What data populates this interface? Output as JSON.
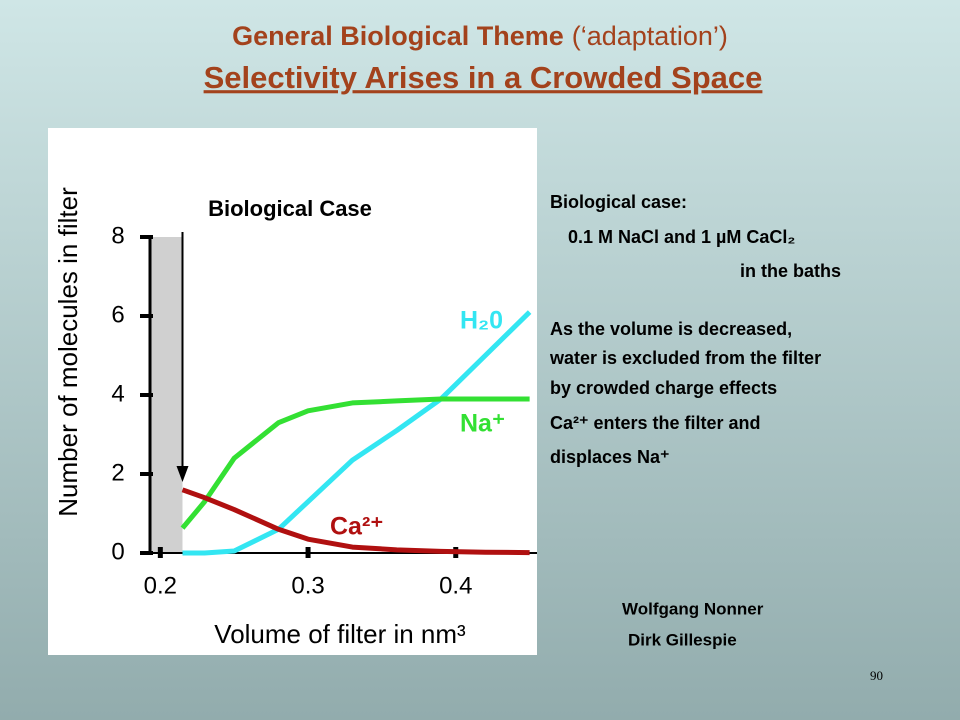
{
  "slide": {
    "title_bold": "General Biological Theme",
    "title_note": "(‘adaptation’)",
    "subtitle": "Selectivity Arises in a Crowded Space",
    "notes": [
      "Biological case:",
      "0.1 M NaCl and 1 µM CaCl₂",
      "in the baths",
      "As the volume is decreased,",
      "water is excluded from the filter",
      "by crowded charge effects",
      "Ca²⁺ enters the filter and",
      "displaces Na⁺"
    ],
    "authors": [
      "Wolfgang Nonner",
      "Dirk Gillespie"
    ],
    "page_number": "90"
  },
  "chart_data": {
    "type": "line",
    "annotation": "Biological Case",
    "xlabel": "Volume of filter in nm³",
    "ylabel": "Number of molecules in filter",
    "x": [
      0.215,
      0.23,
      0.25,
      0.28,
      0.3,
      0.33,
      0.36,
      0.39,
      0.42,
      0.45
    ],
    "xlim": [
      0.193,
      0.455
    ],
    "xticks": [
      0.2,
      0.3,
      0.4
    ],
    "ylim": [
      0,
      8
    ],
    "yticks": [
      0,
      2,
      4,
      6,
      8
    ],
    "series": [
      {
        "name": "H₂0",
        "color": "#33e6f2",
        "values": [
          0,
          0,
          0.05,
          0.6,
          1.3,
          2.35,
          3.1,
          3.9,
          5.0,
          6.1
        ]
      },
      {
        "name": "Na⁺",
        "color": "#33e033",
        "values": [
          0.63,
          1.3,
          2.4,
          3.3,
          3.6,
          3.8,
          3.85,
          3.9,
          3.9,
          3.9
        ]
      },
      {
        "name": "Ca²⁺",
        "color": "#b01010",
        "values": [
          1.6,
          1.4,
          1.1,
          0.6,
          0.35,
          0.15,
          0.08,
          0.04,
          0.02,
          0.01
        ]
      }
    ]
  }
}
